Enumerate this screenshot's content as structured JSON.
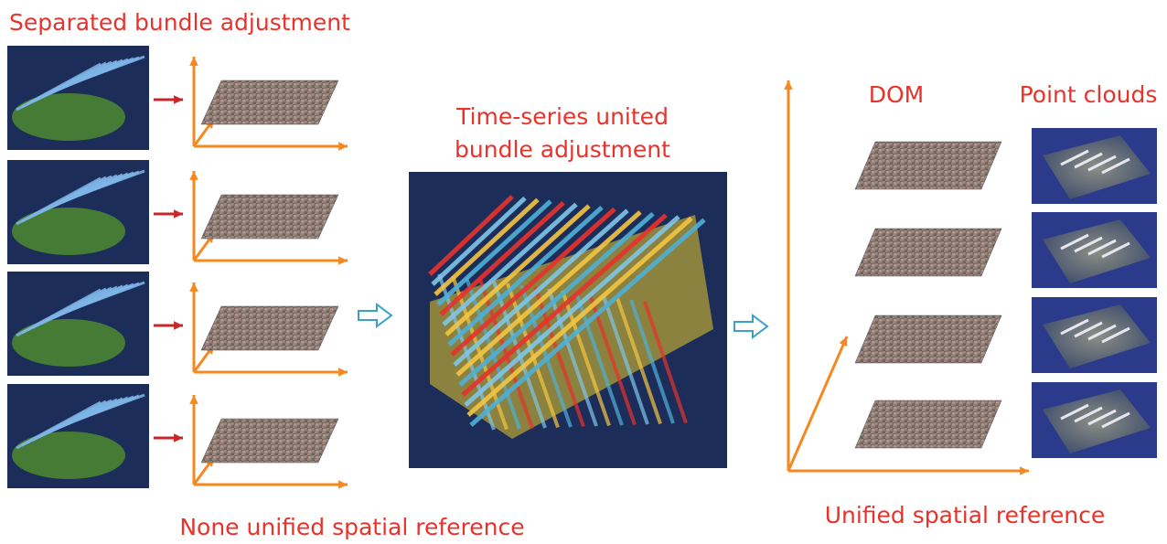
{
  "labels": {
    "separated": "Separated bundle adjustment",
    "united": [
      "Time-series united",
      "bundle adjustment"
    ],
    "dom": "DOM",
    "point_clouds": "Point clouds",
    "none_unified": "None unified spatial reference",
    "unified": "Unified spatial reference"
  }
}
